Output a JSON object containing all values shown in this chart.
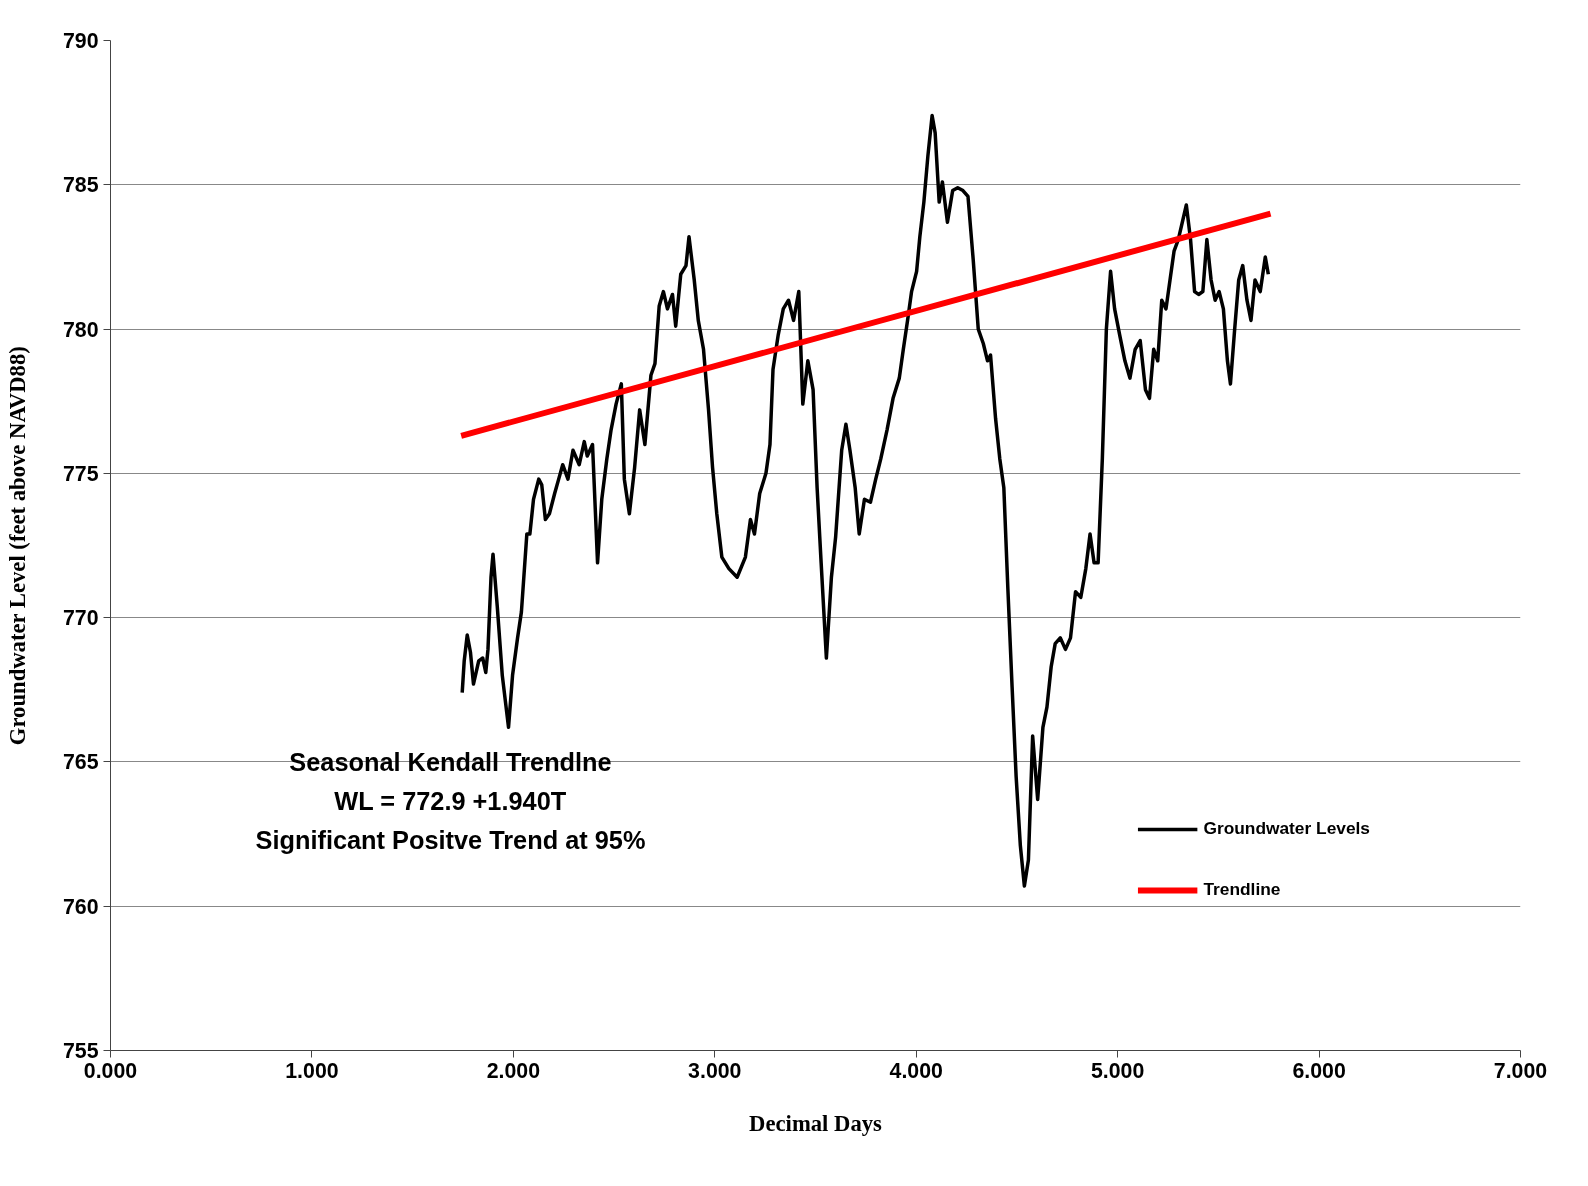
{
  "chart_data": {
    "type": "line",
    "xlabel": "Decimal Days",
    "ylabel": "Groundwater Level (feet above NAVD88)",
    "xlim": [
      0,
      7
    ],
    "ylim": [
      755,
      790
    ],
    "xticks": [
      {
        "value": 0,
        "label": "0.000"
      },
      {
        "value": 1,
        "label": "1.000"
      },
      {
        "value": 2,
        "label": "2.000"
      },
      {
        "value": 3,
        "label": "3.000"
      },
      {
        "value": 4,
        "label": "4.000"
      },
      {
        "value": 5,
        "label": "5.000"
      },
      {
        "value": 6,
        "label": "6.000"
      },
      {
        "value": 7,
        "label": "7.000"
      }
    ],
    "yticks": [
      755,
      760,
      765,
      770,
      775,
      780,
      785,
      790
    ],
    "grid": "y",
    "legend": "bottom right",
    "marker": "none",
    "line_style": "solid",
    "annotations": [
      "Seasonal Kendall Trendlne",
      "WL = 772.9 +1.940T",
      "Significant Positve Trend at 95%"
    ],
    "series": [
      {
        "name": "Groundwater Levels",
        "color": "#000000",
        "x": [
          1.746,
          1.756,
          1.771,
          1.787,
          1.802,
          1.828,
          1.848,
          1.863,
          1.874,
          1.889,
          1.899,
          1.92,
          1.945,
          1.976,
          1.996,
          2.021,
          2.04,
          2.067,
          2.082,
          2.1,
          2.126,
          2.141,
          2.159,
          2.179,
          2.205,
          2.225,
          2.245,
          2.271,
          2.296,
          2.327,
          2.352,
          2.367,
          2.393,
          2.418,
          2.439,
          2.464,
          2.485,
          2.51,
          2.536,
          2.551,
          2.576,
          2.602,
          2.627,
          2.653,
          2.683,
          2.703,
          2.724,
          2.745,
          2.765,
          2.79,
          2.806,
          2.831,
          2.857,
          2.872,
          2.898,
          2.918,
          2.944,
          2.969,
          2.989,
          3.01,
          3.035,
          3.07,
          3.111,
          3.152,
          3.177,
          3.197,
          3.223,
          3.254,
          3.274,
          3.289,
          3.315,
          3.34,
          3.366,
          3.391,
          3.417,
          3.437,
          3.462,
          3.488,
          3.508,
          3.528,
          3.554,
          3.579,
          3.6,
          3.63,
          3.651,
          3.671,
          3.697,
          3.717,
          3.743,
          3.773,
          3.799,
          3.824,
          3.855,
          3.885,
          3.916,
          3.936,
          3.957,
          3.977,
          4.002,
          4.018,
          4.038,
          4.058,
          4.079,
          4.094,
          4.114,
          4.13,
          4.155,
          4.181,
          4.206,
          4.232,
          4.257,
          4.283,
          4.308,
          4.333,
          4.354,
          4.369,
          4.394,
          4.415,
          4.435,
          4.455,
          4.476,
          4.496,
          4.517,
          4.537,
          4.557,
          4.578,
          4.603,
          4.629,
          4.649,
          4.67,
          4.69,
          4.715,
          4.741,
          4.766,
          4.791,
          4.817,
          4.842,
          4.863,
          4.883,
          4.903,
          4.924,
          4.944,
          4.965,
          4.985,
          5.01,
          5.036,
          5.061,
          5.087,
          5.112,
          5.138,
          5.158,
          5.179,
          5.199,
          5.219,
          5.24,
          5.26,
          5.28,
          5.301,
          5.341,
          5.362,
          5.382,
          5.402,
          5.423,
          5.443,
          5.464,
          5.484,
          5.504,
          5.525,
          5.545,
          5.56,
          5.581,
          5.601,
          5.621,
          5.642,
          5.662,
          5.682,
          5.708,
          5.733,
          5.748
        ],
        "values": [
          767.4,
          768.5,
          769.4,
          768.8,
          767.7,
          768.5,
          768.6,
          768.1,
          768.9,
          771.4,
          772.2,
          770.4,
          768.0,
          766.2,
          768.0,
          769.3,
          770.2,
          772.9,
          772.9,
          774.1,
          774.8,
          774.6,
          773.4,
          773.6,
          774.3,
          774.8,
          775.3,
          774.8,
          775.8,
          775.3,
          776.1,
          775.6,
          776.0,
          771.9,
          774.1,
          775.5,
          776.5,
          777.4,
          778.1,
          774.8,
          773.6,
          775.2,
          777.2,
          776.0,
          778.4,
          778.8,
          780.8,
          781.3,
          780.7,
          781.2,
          780.1,
          781.9,
          782.2,
          783.2,
          781.7,
          780.3,
          779.3,
          777.2,
          775.2,
          773.6,
          772.1,
          771.7,
          771.4,
          772.1,
          773.4,
          772.9,
          774.3,
          775.0,
          776.0,
          778.6,
          779.8,
          780.7,
          781.0,
          780.3,
          781.3,
          777.4,
          778.9,
          777.9,
          774.5,
          771.9,
          768.6,
          771.4,
          772.8,
          775.8,
          776.7,
          775.8,
          774.5,
          772.9,
          774.1,
          774.0,
          774.8,
          775.5,
          776.5,
          777.6,
          778.3,
          779.3,
          780.3,
          781.3,
          782.0,
          783.2,
          784.4,
          786.0,
          787.4,
          786.8,
          784.4,
          785.1,
          783.7,
          784.8,
          784.9,
          784.8,
          784.6,
          782.4,
          780.0,
          779.5,
          778.9,
          779.1,
          776.9,
          775.5,
          774.5,
          771.0,
          767.6,
          764.5,
          762.1,
          760.7,
          761.6,
          765.9,
          763.7,
          766.2,
          766.9,
          768.3,
          769.1,
          769.3,
          768.9,
          769.3,
          770.9,
          770.7,
          771.7,
          772.9,
          771.9,
          771.9,
          775.5,
          780.0,
          782.0,
          780.7,
          779.8,
          778.9,
          778.3,
          779.3,
          779.6,
          777.9,
          777.6,
          779.3,
          778.9,
          781.0,
          780.7,
          781.7,
          782.7,
          783.1,
          784.3,
          783.1,
          781.3,
          781.2,
          781.3,
          783.1,
          781.7,
          781.0,
          781.3,
          780.7,
          778.9,
          778.1,
          780.0,
          781.7,
          782.2,
          781.0,
          780.3,
          781.7,
          781.3,
          782.5,
          781.9
        ]
      },
      {
        "name": "Trendline",
        "color": "#ff0000",
        "x": [
          1.741,
          5.759
        ],
        "values": [
          776.3,
          784.0
        ]
      }
    ]
  }
}
